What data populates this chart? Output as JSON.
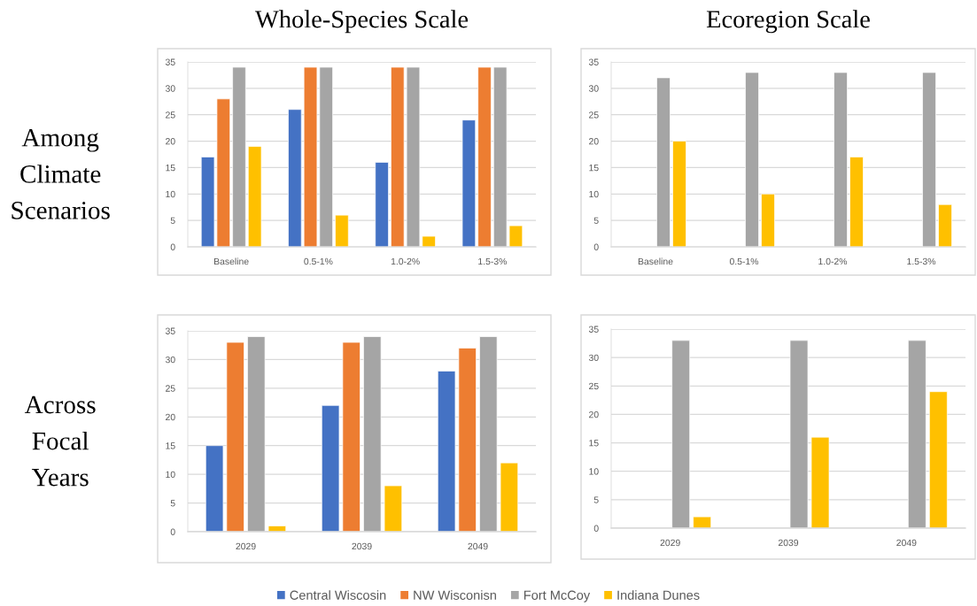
{
  "chart_data": [
    {
      "type": "bar",
      "title": "Whole-Species Scale",
      "ylabel": "Among Climate Scenarios",
      "categories": [
        "Baseline",
        "0.5-1%",
        "1.0-2%",
        "1.5-3%"
      ],
      "series": [
        {
          "name": "Central Wiscosin",
          "color": "#4472c4",
          "values": [
            17,
            26,
            16,
            24
          ]
        },
        {
          "name": "NW Wisconisn",
          "color": "#ed7d31",
          "values": [
            28,
            34,
            34,
            34
          ]
        },
        {
          "name": "Fort McCoy",
          "color": "#a5a5a5",
          "values": [
            34,
            34,
            34,
            34
          ]
        },
        {
          "name": "Indiana Dunes",
          "color": "#ffc000",
          "values": [
            19,
            6,
            2,
            4
          ]
        }
      ],
      "ylim": [
        0,
        35
      ],
      "yticks": [
        0,
        5,
        10,
        15,
        20,
        25,
        30,
        35
      ],
      "grid": "y",
      "legend": "bottom"
    },
    {
      "type": "bar",
      "title": "Ecoregion Scale",
      "categories": [
        "Baseline",
        "0.5-1%",
        "1.0-2%",
        "1.5-3%"
      ],
      "series": [
        {
          "values": [
            null,
            null,
            null,
            null
          ]
        },
        {
          "values": [
            null,
            null,
            null,
            null
          ]
        },
        {
          "color": "#a5a5a5",
          "values": [
            32,
            33,
            33,
            33
          ]
        },
        {
          "color": "#ffc000",
          "values": [
            20,
            10,
            17,
            8
          ]
        }
      ],
      "ylim": [
        0,
        35
      ],
      "yticks": [
        0,
        5,
        10,
        15,
        20,
        25,
        30,
        35
      ],
      "grid": "y"
    },
    {
      "type": "bar",
      "ylabel": "Across Focal Years",
      "categories": [
        "2029",
        "2039",
        "2049"
      ],
      "series": [
        {
          "color": "#4472c4",
          "values": [
            15,
            22,
            28
          ]
        },
        {
          "color": "#ed7d31",
          "values": [
            33,
            33,
            32
          ]
        },
        {
          "color": "#a5a5a5",
          "values": [
            34,
            34,
            34
          ]
        },
        {
          "color": "#ffc000",
          "values": [
            1,
            8,
            12
          ]
        }
      ],
      "ylim": [
        0,
        35
      ],
      "yticks": [
        0,
        5,
        10,
        15,
        20,
        25,
        30,
        35
      ],
      "grid": "y"
    },
    {
      "type": "bar",
      "categories": [
        "2029",
        "2039",
        "2049"
      ],
      "series": [
        {
          "values": [
            null,
            null,
            null
          ]
        },
        {
          "values": [
            null,
            null,
            null
          ]
        },
        {
          "color": "#a5a5a5",
          "values": [
            33,
            33,
            33
          ]
        },
        {
          "color": "#ffc000",
          "values": [
            2,
            16,
            24
          ]
        }
      ],
      "ylim": [
        0,
        35
      ],
      "yticks": [
        0,
        5,
        10,
        15,
        20,
        25,
        30,
        35
      ],
      "grid": "y"
    }
  ]
}
